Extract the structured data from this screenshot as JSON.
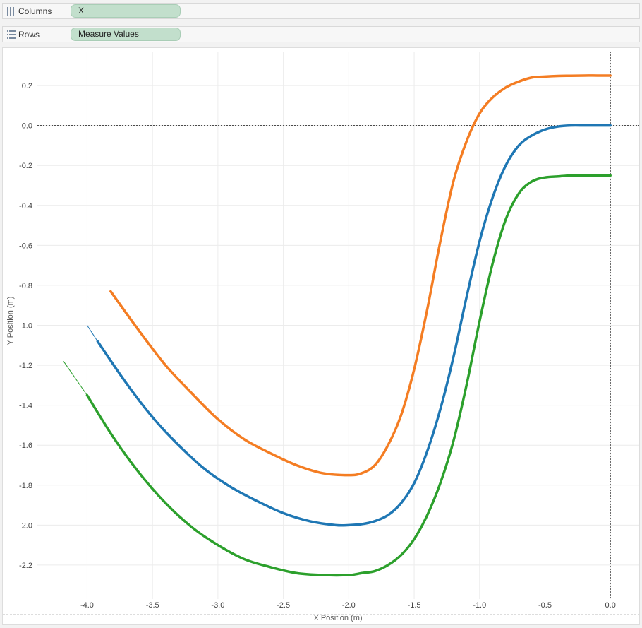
{
  "shelves": {
    "columns": {
      "label": "Columns",
      "pill": "X"
    },
    "rows": {
      "label": "Rows",
      "pill": "Measure Values"
    }
  },
  "chart_data": {
    "type": "line",
    "xlabel": "X Position (m)",
    "ylabel": "Y Position (m)",
    "xlim": [
      -4.38,
      0.22
    ],
    "ylim": [
      -2.37,
      0.37
    ],
    "x_ticks": [
      -4.0,
      -3.5,
      -3.0,
      -2.5,
      -2.0,
      -1.5,
      -1.0,
      -0.5,
      0.0
    ],
    "x_tick_labels": [
      "-4.0",
      "-3.5",
      "-3.0",
      "-2.5",
      "-2.0",
      "-1.5",
      "-1.0",
      "-0.5",
      "0.0"
    ],
    "y_ticks": [
      0.2,
      0.0,
      -0.2,
      -0.4,
      -0.6,
      -0.8,
      -1.0,
      -1.2,
      -1.4,
      -1.6,
      -1.8,
      -2.0,
      -2.2
    ],
    "y_tick_labels": [
      "0.2",
      "0.0",
      "-0.2",
      "-0.4",
      "-0.6",
      "-0.8",
      "-1.0",
      "-1.2",
      "-1.4",
      "-1.6",
      "-1.8",
      "-2.0",
      "-2.2"
    ],
    "grid": true,
    "zero_lines": true,
    "series": [
      {
        "color": "#f47d23",
        "x": [
          -3.82,
          -3.6,
          -3.4,
          -3.2,
          -3.0,
          -2.8,
          -2.6,
          -2.4,
          -2.2,
          -2.0,
          -1.9,
          -1.8,
          -1.7,
          -1.6,
          -1.5,
          -1.4,
          -1.3,
          -1.2,
          -1.1,
          -1.0,
          -0.9,
          -0.8,
          -0.7,
          -0.6,
          -0.5,
          -0.4,
          -0.3,
          -0.2,
          -0.1,
          0.0
        ],
        "y": [
          -0.83,
          -1.03,
          -1.2,
          -1.34,
          -1.47,
          -1.57,
          -1.64,
          -1.7,
          -1.74,
          -1.75,
          -1.74,
          -1.7,
          -1.6,
          -1.45,
          -1.22,
          -0.92,
          -0.58,
          -0.28,
          -0.08,
          0.06,
          0.14,
          0.19,
          0.22,
          0.24,
          0.245,
          0.248,
          0.249,
          0.25,
          0.25,
          0.25
        ]
      },
      {
        "color": "#1f77b4",
        "x": [
          -3.92,
          -3.7,
          -3.5,
          -3.3,
          -3.1,
          -2.9,
          -2.7,
          -2.5,
          -2.3,
          -2.1,
          -2.0,
          -1.9,
          -1.8,
          -1.7,
          -1.6,
          -1.5,
          -1.4,
          -1.3,
          -1.2,
          -1.1,
          -1.0,
          -0.9,
          -0.8,
          -0.7,
          -0.6,
          -0.5,
          -0.4,
          -0.3,
          -0.2,
          -0.1,
          0.0
        ],
        "y": [
          -1.08,
          -1.29,
          -1.46,
          -1.6,
          -1.72,
          -1.81,
          -1.88,
          -1.94,
          -1.98,
          -2.0,
          -2.0,
          -1.995,
          -1.98,
          -1.95,
          -1.89,
          -1.79,
          -1.63,
          -1.42,
          -1.16,
          -0.86,
          -0.58,
          -0.36,
          -0.2,
          -0.1,
          -0.05,
          -0.02,
          -0.005,
          0.0,
          0.0,
          0.0,
          0.0
        ]
      },
      {
        "color": "#2ca02c",
        "x": [
          -4.0,
          -3.8,
          -3.6,
          -3.4,
          -3.2,
          -3.0,
          -2.8,
          -2.6,
          -2.4,
          -2.2,
          -2.0,
          -1.9,
          -1.8,
          -1.7,
          -1.6,
          -1.5,
          -1.4,
          -1.3,
          -1.2,
          -1.1,
          -1.0,
          -0.9,
          -0.8,
          -0.7,
          -0.6,
          -0.5,
          -0.4,
          -0.3,
          -0.2,
          -0.1,
          0.0
        ],
        "y": [
          -1.35,
          -1.56,
          -1.74,
          -1.89,
          -2.01,
          -2.1,
          -2.17,
          -2.21,
          -2.24,
          -2.25,
          -2.25,
          -2.24,
          -2.23,
          -2.2,
          -2.15,
          -2.07,
          -1.95,
          -1.79,
          -1.58,
          -1.3,
          -0.98,
          -0.69,
          -0.47,
          -0.34,
          -0.28,
          -0.26,
          -0.255,
          -0.25,
          -0.25,
          -0.25,
          -0.25
        ]
      }
    ],
    "extensions": [
      {
        "color": "#1f77b4",
        "x": [
          -4.0,
          -3.92
        ],
        "y": [
          -1.0,
          -1.08
        ]
      },
      {
        "color": "#2ca02c",
        "x": [
          -4.18,
          -4.0
        ],
        "y": [
          -1.18,
          -1.35
        ]
      }
    ]
  }
}
